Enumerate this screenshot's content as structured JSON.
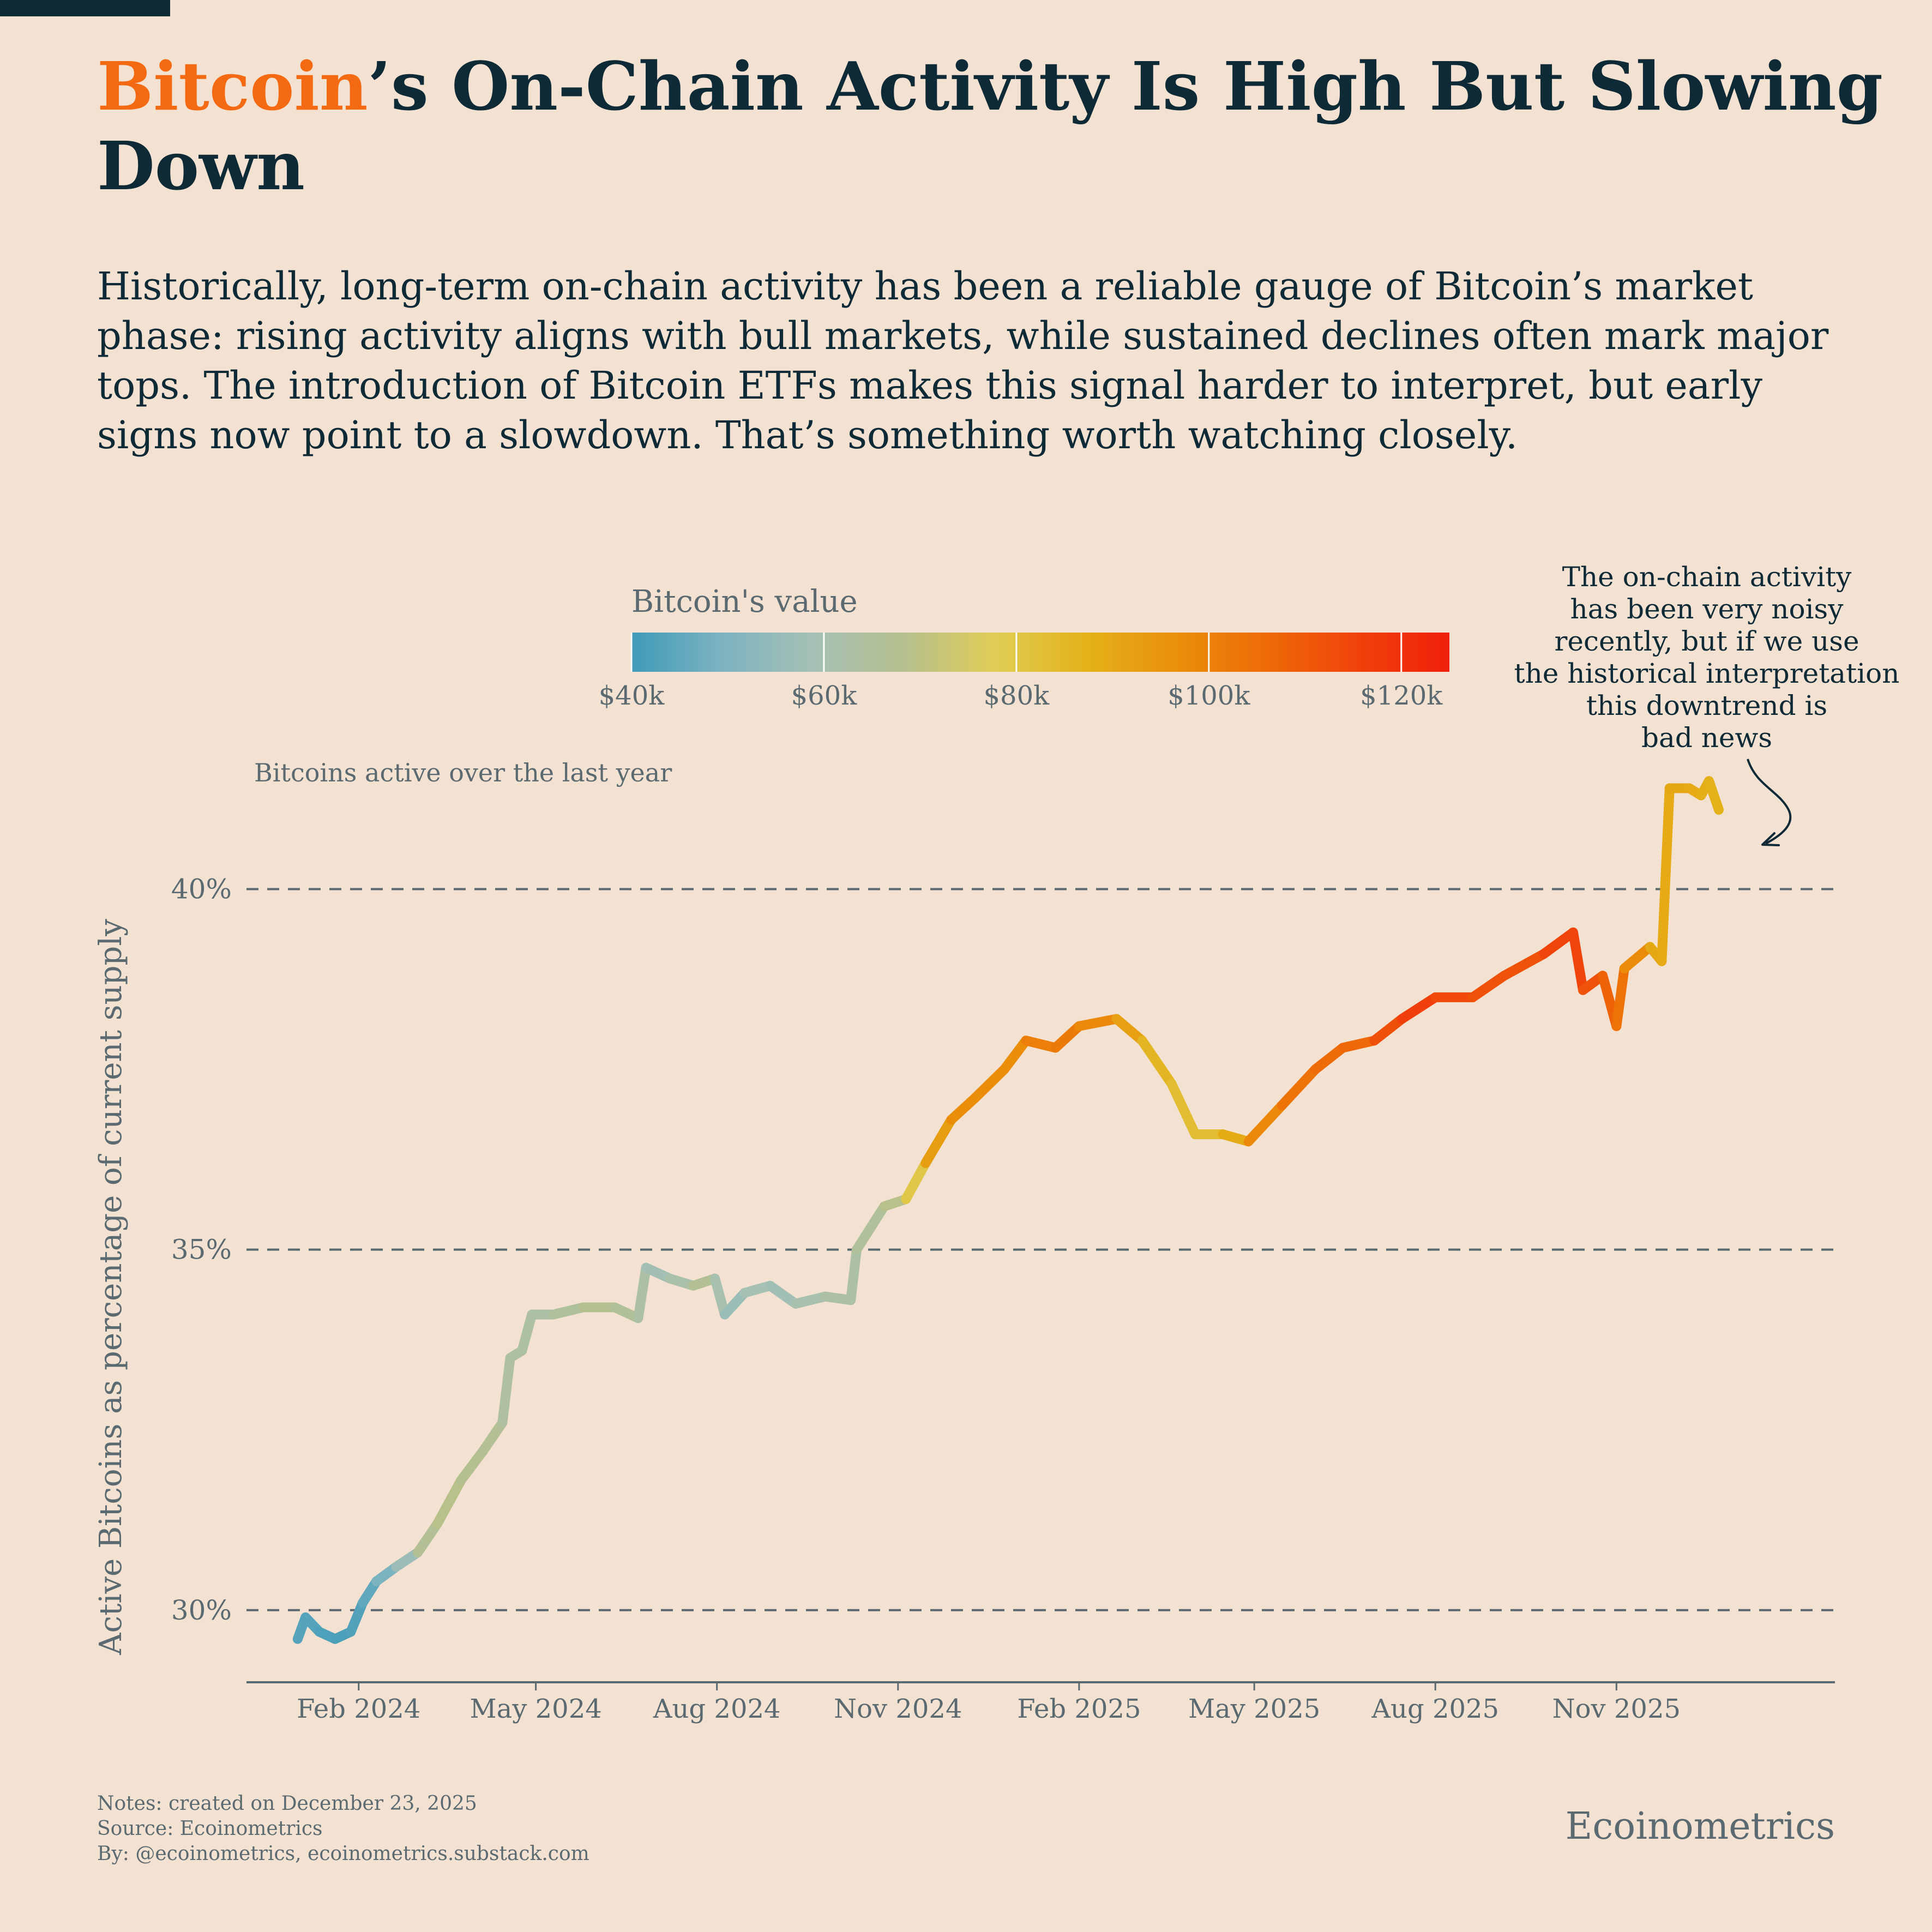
{
  "title": {
    "accent": "Bitcoin",
    "rest": "’s On-Chain Activity Is High But Slowing Down"
  },
  "subtitle": "Historically, long-term on-chain activity has been a reliable gauge of Bitcoin’s market phase: rising activity aligns with bull markets, while sustained declines often mark major tops. The introduction of Bitcoin ETFs makes this signal harder to interpret, but early signs now point to a slowdown. That’s something worth watching closely.",
  "colors": {
    "background": "#f3e1d2",
    "title": "#0e2a36",
    "accent": "#f36a12",
    "muted": "#5a6a70",
    "gradient_stops": [
      "#3f9bb8",
      "#7db3c0",
      "#a5c0b4",
      "#b6c08e",
      "#e0cd55",
      "#e3b21a",
      "#ea8f0a",
      "#ee6a08",
      "#f0420a",
      "#f01f0a"
    ]
  },
  "legend": {
    "title": "Bitcoin's value",
    "ticks": [
      "$40k",
      "$60k",
      "$80k",
      "$100k",
      "$120k"
    ],
    "tick_values": [
      40000,
      60000,
      80000,
      100000,
      120000
    ],
    "range": [
      40000,
      125000
    ]
  },
  "annotation": {
    "text_lines": [
      "The on-chain activity",
      "has been very noisy",
      "recently, but if we use",
      "the historical interpretation",
      "this downtrend is",
      "bad news"
    ]
  },
  "footer": {
    "notes": "Notes: created on December 23, 2025",
    "source": "Source: Ecoinometrics",
    "by": "By: @ecoinometrics, ecoinometrics.substack.com"
  },
  "brand": "Ecoinometrics",
  "chart_data": {
    "type": "line",
    "title": "",
    "subtitle": "Bitcoins active over the last year",
    "ylabel": "Active Bitcoins as percentage of current supply",
    "xlabel": "",
    "ylim": [
      29.0,
      42.5
    ],
    "y_ticks": [
      30,
      35,
      40
    ],
    "y_tick_labels": [
      "30%",
      "35%",
      "40%"
    ],
    "xlim": [
      "2023-12-06",
      "2026-02-20"
    ],
    "x_ticks": [
      "2024-02-01",
      "2024-05-01",
      "2024-08-01",
      "2024-11-01",
      "2025-02-01",
      "2025-05-01",
      "2025-08-01",
      "2025-11-01"
    ],
    "x_tick_labels": [
      "Feb 2024",
      "May 2024",
      "Aug 2024",
      "Nov 2024",
      "Feb 2025",
      "May 2025",
      "Aug 2025",
      "Nov 2025"
    ],
    "grid": "horizontal dashed",
    "color_by": "Bitcoin's value",
    "series": [
      {
        "points": [
          {
            "date": "2024-01-01",
            "y": 29.6,
            "price": 43000
          },
          {
            "date": "2024-01-05",
            "y": 29.9,
            "price": 44000
          },
          {
            "date": "2024-01-12",
            "y": 29.7,
            "price": 43000
          },
          {
            "date": "2024-01-20",
            "y": 29.6,
            "price": 41500
          },
          {
            "date": "2024-01-28",
            "y": 29.7,
            "price": 42500
          },
          {
            "date": "2024-02-03",
            "y": 30.1,
            "price": 43000
          },
          {
            "date": "2024-02-10",
            "y": 30.4,
            "price": 47000
          },
          {
            "date": "2024-02-20",
            "y": 30.6,
            "price": 51500
          },
          {
            "date": "2024-03-02",
            "y": 30.8,
            "price": 62000
          },
          {
            "date": "2024-03-12",
            "y": 31.2,
            "price": 71000
          },
          {
            "date": "2024-03-24",
            "y": 31.8,
            "price": 67000
          },
          {
            "date": "2024-04-04",
            "y": 32.2,
            "price": 68000
          },
          {
            "date": "2024-04-14",
            "y": 32.6,
            "price": 65000
          },
          {
            "date": "2024-04-18",
            "y": 33.5,
            "price": 63000
          },
          {
            "date": "2024-04-24",
            "y": 33.6,
            "price": 64000
          },
          {
            "date": "2024-04-29",
            "y": 34.1,
            "price": 63000
          },
          {
            "date": "2024-05-10",
            "y": 34.1,
            "price": 61000
          },
          {
            "date": "2024-05-25",
            "y": 34.2,
            "price": 68000
          },
          {
            "date": "2024-06-10",
            "y": 34.2,
            "price": 67000
          },
          {
            "date": "2024-06-22",
            "y": 34.05,
            "price": 64000
          },
          {
            "date": "2024-06-26",
            "y": 34.75,
            "price": 61000
          },
          {
            "date": "2024-07-08",
            "y": 34.6,
            "price": 56000
          },
          {
            "date": "2024-07-20",
            "y": 34.5,
            "price": 67000
          },
          {
            "date": "2024-07-31",
            "y": 34.6,
            "price": 66000
          },
          {
            "date": "2024-08-05",
            "y": 34.1,
            "price": 54000
          },
          {
            "date": "2024-08-15",
            "y": 34.4,
            "price": 59000
          },
          {
            "date": "2024-08-28",
            "y": 34.5,
            "price": 59500
          },
          {
            "date": "2024-09-10",
            "y": 34.25,
            "price": 57000
          },
          {
            "date": "2024-09-25",
            "y": 34.35,
            "price": 64000
          },
          {
            "date": "2024-10-08",
            "y": 34.3,
            "price": 62000
          },
          {
            "date": "2024-10-11",
            "y": 35.0,
            "price": 63000
          },
          {
            "date": "2024-10-25",
            "y": 35.6,
            "price": 67500
          },
          {
            "date": "2024-11-05",
            "y": 35.7,
            "price": 70000
          },
          {
            "date": "2024-11-15",
            "y": 36.2,
            "price": 90000
          },
          {
            "date": "2024-11-28",
            "y": 36.8,
            "price": 96000
          },
          {
            "date": "2024-12-10",
            "y": 37.1,
            "price": 98000
          },
          {
            "date": "2024-12-25",
            "y": 37.5,
            "price": 96000
          },
          {
            "date": "2025-01-05",
            "y": 37.9,
            "price": 98000
          },
          {
            "date": "2025-01-20",
            "y": 37.8,
            "price": 104000
          },
          {
            "date": "2025-02-01",
            "y": 38.1,
            "price": 100000
          },
          {
            "date": "2025-02-20",
            "y": 38.2,
            "price": 96000
          },
          {
            "date": "2025-03-05",
            "y": 37.9,
            "price": 88000
          },
          {
            "date": "2025-03-20",
            "y": 37.3,
            "price": 84000
          },
          {
            "date": "2025-04-01",
            "y": 36.6,
            "price": 83000
          },
          {
            "date": "2025-04-15",
            "y": 36.6,
            "price": 84000
          },
          {
            "date": "2025-04-28",
            "y": 36.5,
            "price": 94000
          },
          {
            "date": "2025-05-15",
            "y": 37.0,
            "price": 103000
          },
          {
            "date": "2025-06-01",
            "y": 37.5,
            "price": 105000
          },
          {
            "date": "2025-06-15",
            "y": 37.8,
            "price": 106000
          },
          {
            "date": "2025-07-01",
            "y": 37.9,
            "price": 107000
          },
          {
            "date": "2025-07-15",
            "y": 38.2,
            "price": 118000
          },
          {
            "date": "2025-08-01",
            "y": 38.5,
            "price": 115000
          },
          {
            "date": "2025-08-20",
            "y": 38.5,
            "price": 113000
          },
          {
            "date": "2025-09-05",
            "y": 38.8,
            "price": 111000
          },
          {
            "date": "2025-09-25",
            "y": 39.1,
            "price": 112000
          },
          {
            "date": "2025-10-10",
            "y": 39.4,
            "price": 118000
          },
          {
            "date": "2025-10-15",
            "y": 38.6,
            "price": 112000
          },
          {
            "date": "2025-10-25",
            "y": 38.8,
            "price": 111000
          },
          {
            "date": "2025-11-01",
            "y": 38.1,
            "price": 105000
          },
          {
            "date": "2025-11-05",
            "y": 38.9,
            "price": 103000
          },
          {
            "date": "2025-11-18",
            "y": 39.2,
            "price": 92000
          },
          {
            "date": "2025-11-24",
            "y": 39.0,
            "price": 88000
          },
          {
            "date": "2025-11-28",
            "y": 41.4,
            "price": 91000
          },
          {
            "date": "2025-12-08",
            "y": 41.4,
            "price": 90000
          },
          {
            "date": "2025-12-14",
            "y": 41.3,
            "price": 89000
          },
          {
            "date": "2025-12-18",
            "y": 41.5,
            "price": 87000
          },
          {
            "date": "2025-12-23",
            "y": 41.1,
            "price": 88000
          }
        ]
      }
    ]
  }
}
